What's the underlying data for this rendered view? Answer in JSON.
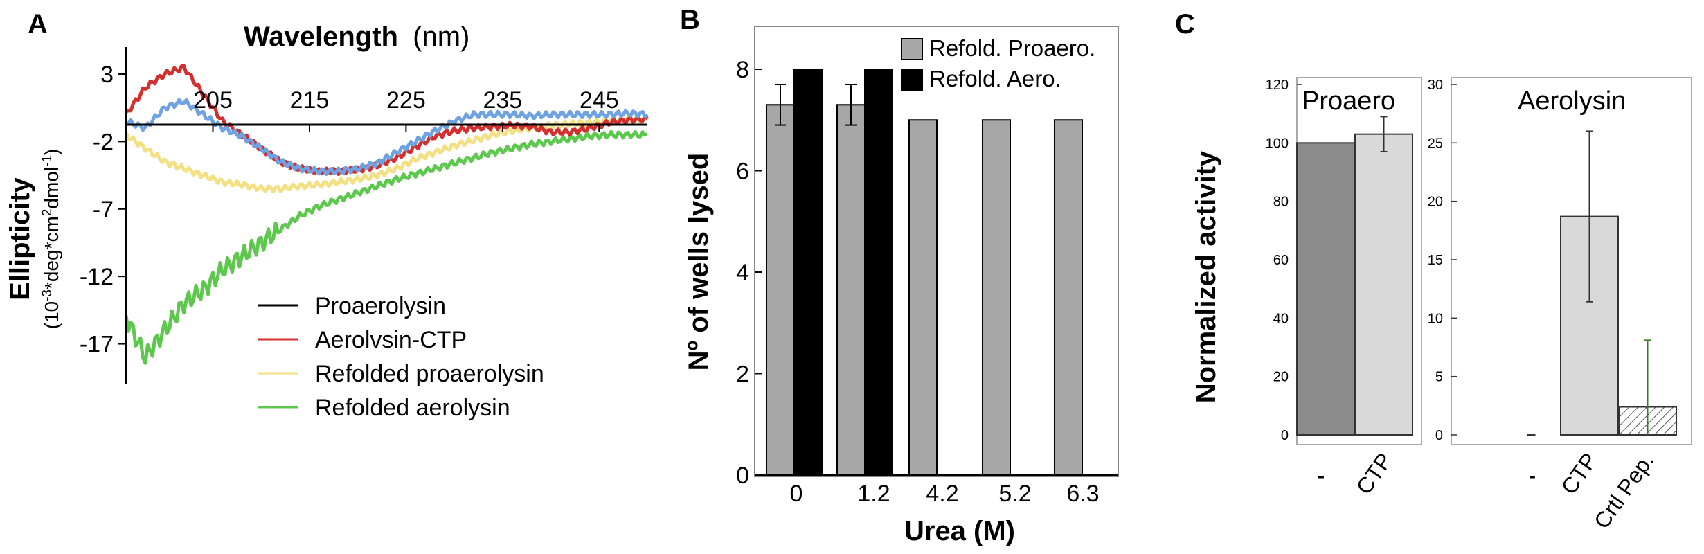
{
  "panels": {
    "A": "A",
    "B": "B",
    "C": "C"
  },
  "chart_data": [
    {
      "panel": "A",
      "type": "line",
      "title": "",
      "xlabel_bold": "Wavelength",
      "xlabel_unit": "(nm)",
      "ylabel": "Ellipticity",
      "ylabel_unit_parts": [
        "(10",
        "-3",
        "*deg*cm",
        "2",
        "dmol",
        "-1",
        ")"
      ],
      "xlim": [
        196,
        250
      ],
      "ylim": [
        -20,
        5
      ],
      "xticks": [
        205,
        215,
        225,
        235,
        245
      ],
      "yticks": [
        3,
        -2,
        -7,
        -12,
        -17
      ],
      "colors": {
        "Proaerolysin": "#000000",
        "Aerolysin-CTP": "#d32f2f",
        "Refolded proaerolysin": "#f2e082",
        "Refolded aerolysin": "#5dc84d",
        "blue_overlay": "#6ea2e0"
      },
      "series": [
        {
          "name": "Proaerolysin",
          "legend_color": "#000000",
          "x": [],
          "y": []
        },
        {
          "name": "Aerolysin-CTP",
          "legend_color": "#d32f2f",
          "x": [
            196,
            198,
            200,
            202,
            204,
            206,
            208,
            210,
            212,
            214,
            216,
            218,
            220,
            222,
            224,
            226,
            228,
            230,
            232,
            234,
            236,
            238,
            240,
            242,
            244,
            246,
            248,
            250
          ],
          "y": [
            0,
            2,
            3,
            3.5,
            1.5,
            -0.5,
            -1.5,
            -2.5,
            -3.5,
            -4,
            -4.2,
            -4.2,
            -4.1,
            -3.8,
            -3.2,
            -2.4,
            -1.6,
            -1.2,
            -1,
            -0.9,
            -0.8,
            -0.9,
            -1.3,
            -1.3,
            -1.0,
            -0.6,
            -0.4,
            -0.3
          ]
        },
        {
          "name": "Refolded proaerolysin",
          "legend_color": "#f2e082",
          "x": [
            196,
            198,
            200,
            202,
            204,
            206,
            208,
            210,
            212,
            214,
            216,
            218,
            220,
            222,
            224,
            226,
            228,
            230,
            232,
            234,
            236,
            238,
            240,
            242,
            244,
            246,
            248,
            250
          ],
          "y": [
            -1.5,
            -2.5,
            -3.5,
            -4,
            -4.5,
            -5,
            -5.2,
            -5.5,
            -5.5,
            -5.3,
            -5.2,
            -5,
            -4.8,
            -4.5,
            -4,
            -3.3,
            -2.8,
            -2.3,
            -1.9,
            -1.5,
            -1.2,
            -1,
            -0.8,
            -0.7,
            -0.6,
            -0.5,
            -0.4,
            -0.4
          ]
        },
        {
          "name": "Refolded aerolysin",
          "legend_color": "#5dc84d",
          "x": [
            196,
            198,
            200,
            202,
            204,
            206,
            208,
            210,
            212,
            214,
            216,
            218,
            220,
            222,
            224,
            226,
            228,
            230,
            232,
            234,
            236,
            238,
            240,
            242,
            244,
            246,
            248,
            250
          ],
          "y": [
            -15,
            -18,
            -16,
            -14,
            -13,
            -11.5,
            -10.5,
            -9.5,
            -8.5,
            -7.5,
            -6.8,
            -6.3,
            -5.8,
            -5.3,
            -4.8,
            -4.4,
            -4,
            -3.6,
            -3.2,
            -2.8,
            -2.5,
            -2.2,
            -2,
            -1.8,
            -1.6,
            -1.5,
            -1.5,
            -1.5
          ]
        },
        {
          "name": "",
          "legend_color": "#6ea2e0",
          "x": [
            196,
            198,
            200,
            202,
            204,
            206,
            208,
            210,
            212,
            214,
            216,
            218,
            220,
            222,
            224,
            226,
            228,
            230,
            232,
            234,
            236,
            238,
            240,
            242,
            244,
            246,
            248,
            250
          ],
          "y": [
            -0.5,
            -1,
            0.5,
            1,
            0,
            -1,
            -1.6,
            -2.5,
            -3.5,
            -4,
            -4.2,
            -4.2,
            -4,
            -3.6,
            -2.8,
            -2,
            -1.2,
            -0.5,
            0,
            0,
            0,
            -0.1,
            0,
            0,
            0,
            0,
            0.1,
            0
          ]
        }
      ],
      "legend": [
        "Proaerolysin",
        "Aerolvsin-CTP",
        "Refolded proaerolysin",
        "Refolded aerolysin"
      ]
    },
    {
      "panel": "B",
      "type": "bar",
      "xlabel": "Urea (M)",
      "ylabel": "Nº of wells lysed",
      "categories": [
        "0",
        "1.2",
        "4.2",
        "5.2",
        "6.3"
      ],
      "ylim": [
        0,
        9
      ],
      "yticks": [
        0,
        2,
        4,
        6,
        8
      ],
      "series": [
        {
          "name": "Refold. Proaero.",
          "color": "#a7a7a7",
          "values": [
            7.3,
            7.3,
            7.0,
            7.0,
            7.0
          ],
          "errors": [
            0.4,
            0.4,
            0.02,
            0.02,
            0.02
          ]
        },
        {
          "name": "Refold. Aero.",
          "color": "#000000",
          "values": [
            8.0,
            8.0,
            0.0,
            0.0,
            0.0
          ],
          "errors": [
            0.02,
            0.02,
            0,
            0,
            0
          ]
        }
      ]
    },
    {
      "panel": "C1",
      "type": "bar",
      "title": "Proaero",
      "ylabel": "Normalized activity",
      "categories": [
        "-",
        "CTP"
      ],
      "ylim": [
        0,
        120
      ],
      "yticks": [
        0,
        20,
        40,
        60,
        80,
        100,
        120
      ],
      "values": [
        100,
        103
      ],
      "errors": [
        0,
        6
      ],
      "colors": [
        "#8c8c8c",
        "#d9d9d9"
      ]
    },
    {
      "panel": "C2",
      "type": "bar",
      "title": "Aerolysin",
      "categories": [
        "-",
        "CTP",
        "Crtl Pep."
      ],
      "ylim": [
        0,
        30
      ],
      "yticks": [
        0,
        5,
        10,
        15,
        20,
        25,
        30
      ],
      "values": [
        0,
        18.7,
        2.4
      ],
      "errors": [
        0,
        7.3,
        5.7
      ],
      "colors": [
        "#d9d9d9",
        "#d9d9d9",
        "hatched"
      ]
    }
  ]
}
